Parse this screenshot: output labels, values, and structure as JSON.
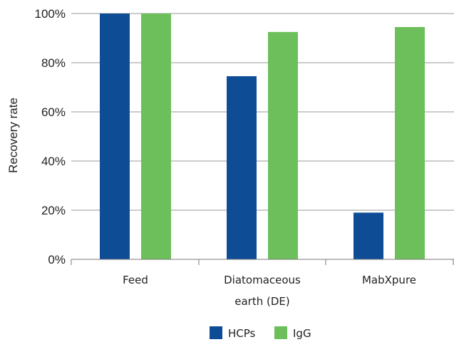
{
  "chart_data": {
    "type": "bar",
    "categories": [
      [
        "Feed"
      ],
      [
        "Diatomaceous",
        "earth (DE)"
      ],
      [
        "MabXpure"
      ]
    ],
    "series": [
      {
        "name": "HCPs",
        "color": "#0e4c96",
        "values": [
          100,
          74.5,
          19
        ]
      },
      {
        "name": "IgG",
        "color": "#6cbf5a",
        "values": [
          100,
          92.5,
          94.5
        ]
      }
    ],
    "xlabel": "",
    "ylabel": "Recovery rate",
    "ylim": [
      0,
      100
    ],
    "yticks": [
      0,
      20,
      40,
      60,
      80,
      100
    ],
    "ytick_labels": [
      "0%",
      "20%",
      "40%",
      "60%",
      "80%",
      "100%"
    ],
    "grid": true,
    "legend_position": "bottom-center"
  }
}
